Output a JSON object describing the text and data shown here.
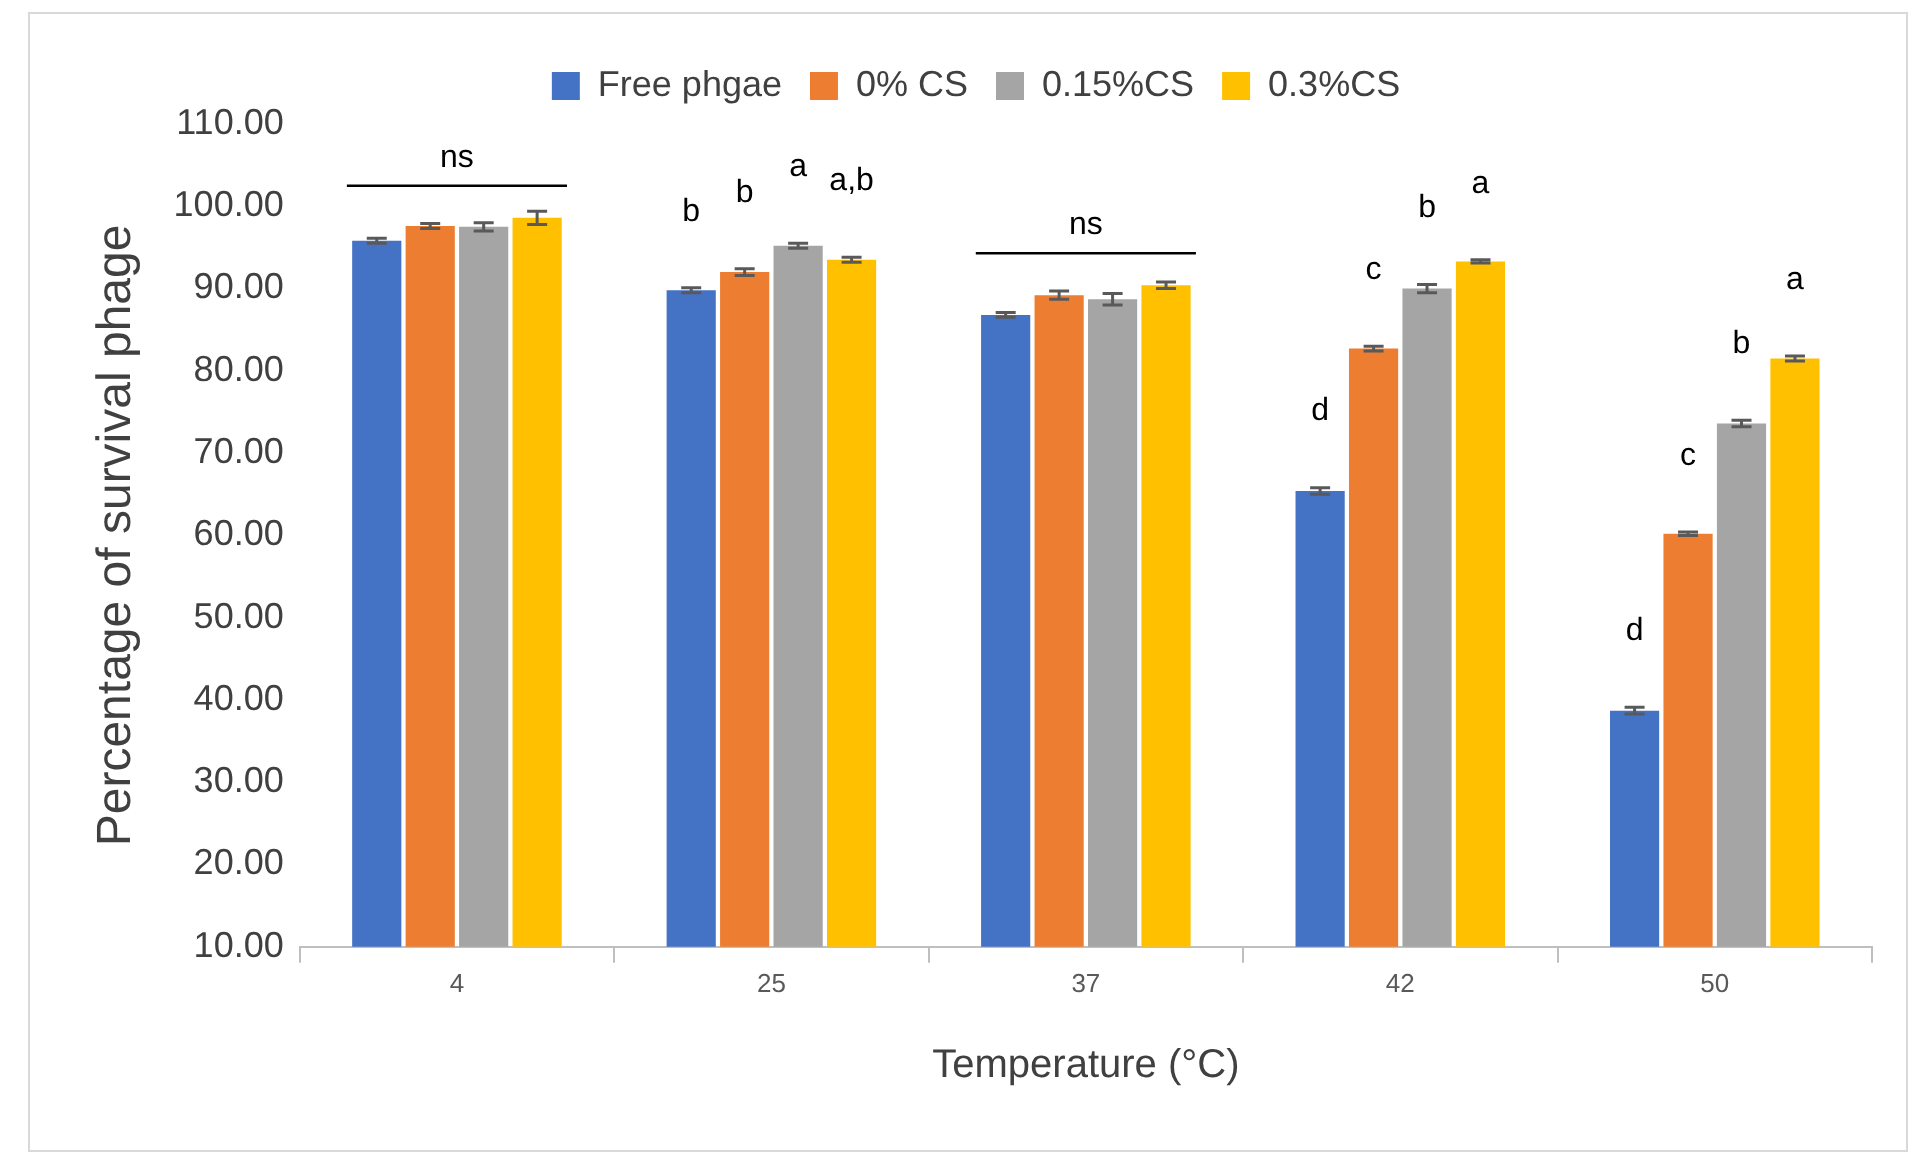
{
  "chart_data": {
    "type": "bar",
    "xlabel": "Temperature (°C)",
    "ylabel": "Percentage of survival phage",
    "categories": [
      "4",
      "25",
      "37",
      "42",
      "50"
    ],
    "series": [
      {
        "name": "Free phgae",
        "color": "#4472c4",
        "values": [
          95.8,
          89.8,
          86.8,
          65.4,
          38.7
        ],
        "errors": [
          0.3,
          0.3,
          0.3,
          0.4,
          0.4
        ],
        "value_labels": [
          null,
          "b",
          null,
          "d",
          "d"
        ]
      },
      {
        "name": "0% CS",
        "color": "#ed7d31",
        "values": [
          97.6,
          92.0,
          89.2,
          82.7,
          60.2
        ],
        "errors": [
          0.3,
          0.4,
          0.5,
          0.3,
          0.2
        ],
        "value_labels": [
          null,
          "b",
          null,
          "c",
          "c"
        ]
      },
      {
        "name": "0.15%CS",
        "color": "#a5a5a5",
        "values": [
          97.5,
          95.2,
          88.7,
          90.0,
          73.6
        ],
        "errors": [
          0.5,
          0.3,
          0.7,
          0.5,
          0.4
        ],
        "value_labels": [
          null,
          "a",
          null,
          "b",
          "b"
        ]
      },
      {
        "name": "0.3%CS",
        "color": "#ffc000",
        "values": [
          98.6,
          93.5,
          90.4,
          93.3,
          81.5
        ],
        "errors": [
          0.8,
          0.3,
          0.4,
          0.2,
          0.3
        ],
        "value_labels": [
          null,
          "a,b",
          null,
          "a",
          "a"
        ]
      }
    ],
    "annotations": [
      "ns",
      "ns"
    ],
    "ylim": [
      10,
      110
    ],
    "yticks": [
      {
        "value": 10,
        "label": "10.00"
      },
      {
        "value": 20,
        "label": "20.00"
      },
      {
        "value": 30,
        "label": "30.00"
      },
      {
        "value": 40,
        "label": "40.00"
      },
      {
        "value": 50,
        "label": "50.00"
      },
      {
        "value": 60,
        "label": "60.00"
      },
      {
        "value": 70,
        "label": "70.00"
      },
      {
        "value": 80,
        "label": "80.00"
      },
      {
        "value": 90,
        "label": "90.00"
      },
      {
        "value": 100,
        "label": "100.00"
      },
      {
        "value": 110,
        "label": "110.00"
      }
    ],
    "grid": false,
    "legend": "top"
  }
}
